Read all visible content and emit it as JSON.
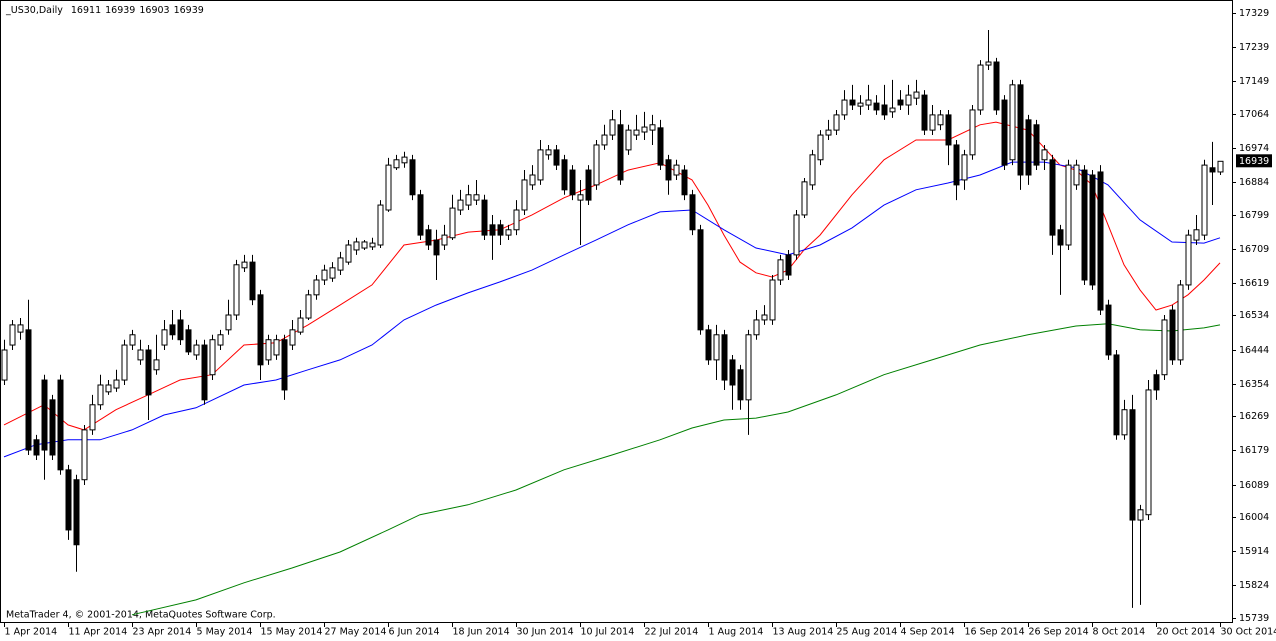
{
  "chart_data": {
    "type": "candlestick",
    "title": "_US30,Daily",
    "footer": "MetaTrader 4, © 2001-2014, MetaQuotes Software Corp.",
    "up_color": "#ffffff",
    "down_color": "#000000",
    "ylim": [
      15728,
      17363
    ],
    "yticks": [
      17329,
      17239,
      17149,
      17064,
      16974,
      16884,
      16799,
      16709,
      16619,
      16534,
      16444,
      16354,
      16269,
      16179,
      16089,
      16004,
      15914,
      15824,
      15739
    ],
    "categories": [
      "1 Apr 2014",
      null,
      null,
      null,
      null,
      null,
      null,
      null,
      "11 Apr 2014",
      null,
      null,
      null,
      null,
      null,
      null,
      null,
      "23 Apr 2014",
      null,
      null,
      null,
      null,
      null,
      null,
      null,
      "5 May 2014",
      null,
      null,
      null,
      null,
      null,
      null,
      null,
      "15 May 2014",
      null,
      null,
      null,
      null,
      null,
      null,
      null,
      "27 May 2014",
      null,
      null,
      null,
      null,
      null,
      null,
      null,
      "6 Jun 2014",
      null,
      null,
      null,
      null,
      null,
      null,
      null,
      "18 Jun 2014",
      null,
      null,
      null,
      null,
      null,
      null,
      null,
      "30 Jun 2014",
      null,
      null,
      null,
      null,
      null,
      null,
      null,
      "10 Jul 2014",
      null,
      null,
      null,
      null,
      null,
      null,
      null,
      "22 Jul 2014",
      null,
      null,
      null,
      null,
      null,
      null,
      null,
      "1 Aug 2014",
      null,
      null,
      null,
      null,
      null,
      null,
      null,
      "13 Aug 2014",
      null,
      null,
      null,
      null,
      null,
      null,
      null,
      "25 Aug 2014",
      null,
      null,
      null,
      null,
      null,
      null,
      null,
      "4 Sep 2014",
      null,
      null,
      null,
      null,
      null,
      null,
      null,
      "16 Sep 2014",
      null,
      null,
      null,
      null,
      null,
      null,
      null,
      "26 Sep 2014",
      null,
      null,
      null,
      null,
      null,
      null,
      null,
      "8 Oct 2014",
      null,
      null,
      null,
      null,
      null,
      null,
      null,
      "20 Oct 2014",
      null,
      null,
      null,
      null,
      null,
      null,
      null,
      "30 Oct 2014"
    ],
    "ohlc": [
      [
        16364,
        16470,
        16351,
        16443
      ],
      [
        16456,
        16522,
        16443,
        16509
      ],
      [
        16490,
        16527,
        16470,
        16509
      ],
      [
        16496,
        16575,
        16167,
        16180
      ],
      [
        16207,
        16220,
        16154,
        16167
      ],
      [
        16364,
        16378,
        16102,
        16180
      ],
      [
        16312,
        16325,
        16154,
        16167
      ],
      [
        16364,
        16378,
        16115,
        16128
      ],
      [
        16128,
        16141,
        15944,
        15970
      ],
      [
        16102,
        16115,
        15860,
        15931
      ],
      [
        16102,
        16246,
        16088,
        16233
      ],
      [
        16233,
        16325,
        16220,
        16299
      ],
      [
        16299,
        16378,
        16286,
        16351
      ],
      [
        16333,
        16364,
        16325,
        16351
      ],
      [
        16343,
        16391,
        16333,
        16364
      ],
      [
        16364,
        16470,
        16351,
        16456
      ],
      [
        16456,
        16496,
        16443,
        16483
      ],
      [
        16417,
        16470,
        16404,
        16443
      ],
      [
        16443,
        16456,
        16259,
        16325
      ],
      [
        16391,
        16483,
        16378,
        16417
      ],
      [
        16456,
        16522,
        16443,
        16496
      ],
      [
        16509,
        16548,
        16470,
        16483
      ],
      [
        16522,
        16548,
        16456,
        16470
      ],
      [
        16496,
        16509,
        16430,
        16438
      ],
      [
        16430,
        16470,
        16417,
        16456
      ],
      [
        16456,
        16470,
        16299,
        16312
      ],
      [
        16378,
        16483,
        16364,
        16470
      ],
      [
        16456,
        16496,
        16443,
        16483
      ],
      [
        16496,
        16575,
        16483,
        16535
      ],
      [
        16535,
        16680,
        16522,
        16667
      ],
      [
        16659,
        16693,
        16648,
        16674
      ],
      [
        16674,
        16693,
        16561,
        16575
      ],
      [
        16588,
        16601,
        16364,
        16404
      ],
      [
        16417,
        16483,
        16404,
        16470
      ],
      [
        16430,
        16483,
        16417,
        16470
      ],
      [
        16470,
        16483,
        16312,
        16338
      ],
      [
        16456,
        16522,
        16443,
        16496
      ],
      [
        16490,
        16548,
        16483,
        16527
      ],
      [
        16527,
        16601,
        16522,
        16588
      ],
      [
        16588,
        16640,
        16575,
        16627
      ],
      [
        16627,
        16667,
        16614,
        16653
      ],
      [
        16632,
        16674,
        16622,
        16659
      ],
      [
        16653,
        16701,
        16640,
        16685
      ],
      [
        16674,
        16732,
        16667,
        16719
      ],
      [
        16706,
        16738,
        16693,
        16727
      ],
      [
        16711,
        16732,
        16706,
        16727
      ],
      [
        16714,
        16738,
        16706,
        16724
      ],
      [
        16719,
        16837,
        16711,
        16824
      ],
      [
        16811,
        16948,
        16806,
        16929
      ],
      [
        16922,
        16956,
        16916,
        16943
      ],
      [
        16935,
        16964,
        16922,
        16950
      ],
      [
        16943,
        16956,
        16837,
        16851
      ],
      [
        16851,
        16864,
        16732,
        16745
      ],
      [
        16759,
        16772,
        16706,
        16719
      ],
      [
        16732,
        16759,
        16627,
        16693
      ],
      [
        16719,
        16772,
        16706,
        16745
      ],
      [
        16738,
        16851,
        16732,
        16816
      ],
      [
        16811,
        16864,
        16798,
        16837
      ],
      [
        16824,
        16877,
        16811,
        16851
      ],
      [
        16837,
        16890,
        16824,
        16851
      ],
      [
        16837,
        16851,
        16732,
        16745
      ],
      [
        16772,
        16798,
        16680,
        16745
      ],
      [
        16772,
        16785,
        16719,
        16745
      ],
      [
        16745,
        16772,
        16732,
        16759
      ],
      [
        16759,
        16837,
        16745,
        16811
      ],
      [
        16811,
        16916,
        16798,
        16890
      ],
      [
        16877,
        16929,
        16864,
        16903
      ],
      [
        16890,
        16995,
        16877,
        16969
      ],
      [
        16956,
        16982,
        16943,
        16969
      ],
      [
        16969,
        16982,
        16916,
        16929
      ],
      [
        16943,
        16956,
        16851,
        16864
      ],
      [
        16916,
        16929,
        16837,
        16851
      ],
      [
        16837,
        16890,
        16719,
        16851
      ],
      [
        16916,
        16929,
        16824,
        16837
      ],
      [
        16877,
        16995,
        16864,
        16982
      ],
      [
        16982,
        17035,
        16969,
        17008
      ],
      [
        17008,
        17074,
        16995,
        17048
      ],
      [
        17035,
        17074,
        16877,
        16890
      ],
      [
        16969,
        17035,
        16956,
        17021
      ],
      [
        17008,
        17061,
        16995,
        17021
      ],
      [
        17016,
        17069,
        16995,
        17029
      ],
      [
        17021,
        17061,
        16982,
        17035
      ],
      [
        17027,
        17048,
        16916,
        16929
      ],
      [
        16943,
        16956,
        16851,
        16890
      ],
      [
        16903,
        16943,
        16890,
        16929
      ],
      [
        16916,
        16929,
        16837,
        16851
      ],
      [
        16851,
        16864,
        16745,
        16759
      ],
      [
        16759,
        16772,
        16483,
        16496
      ],
      [
        16496,
        16509,
        16404,
        16417
      ],
      [
        16417,
        16509,
        16364,
        16483
      ],
      [
        16483,
        16496,
        16338,
        16364
      ],
      [
        16417,
        16430,
        16286,
        16351
      ],
      [
        16391,
        16404,
        16286,
        16312
      ],
      [
        16312,
        16496,
        16220,
        16483
      ],
      [
        16483,
        16548,
        16470,
        16522
      ],
      [
        16522,
        16561,
        16509,
        16535
      ],
      [
        16522,
        16640,
        16509,
        16627
      ],
      [
        16627,
        16693,
        16614,
        16680
      ],
      [
        16693,
        16706,
        16627,
        16640
      ],
      [
        16693,
        16811,
        16680,
        16798
      ],
      [
        16798,
        16895,
        16790,
        16885
      ],
      [
        16877,
        16969,
        16864,
        16956
      ],
      [
        16943,
        17021,
        16929,
        17008
      ],
      [
        17008,
        17048,
        16995,
        17021
      ],
      [
        17021,
        17074,
        17008,
        17061
      ],
      [
        17061,
        17126,
        17048,
        17100
      ],
      [
        17100,
        17140,
        17074,
        17087
      ],
      [
        17084,
        17113,
        17061,
        17092
      ],
      [
        17087,
        17140,
        17074,
        17100
      ],
      [
        17092,
        17113,
        17061,
        17074
      ],
      [
        17087,
        17140,
        17048,
        17061
      ],
      [
        17069,
        17153,
        17053,
        17079
      ],
      [
        17100,
        17126,
        17074,
        17087
      ],
      [
        17087,
        17140,
        17061,
        17113
      ],
      [
        17105,
        17153,
        17087,
        17121
      ],
      [
        17113,
        17126,
        17008,
        17021
      ],
      [
        17021,
        17087,
        17008,
        17061
      ],
      [
        17035,
        17074,
        17021,
        17061
      ],
      [
        17061,
        17074,
        16929,
        16982
      ],
      [
        16982,
        16995,
        16837,
        16877
      ],
      [
        16890,
        16969,
        16864,
        16956
      ],
      [
        16956,
        17087,
        16943,
        17074
      ],
      [
        17074,
        17205,
        17061,
        17192
      ],
      [
        17192,
        17284,
        17179,
        17200
      ],
      [
        17200,
        17211,
        17061,
        17074
      ],
      [
        17100,
        17113,
        16916,
        16929
      ],
      [
        16943,
        17153,
        16929,
        17140
      ],
      [
        17140,
        17153,
        16864,
        16903
      ],
      [
        17048,
        17061,
        16877,
        16903
      ],
      [
        17035,
        17048,
        16916,
        16929
      ],
      [
        16943,
        16982,
        16916,
        16969
      ],
      [
        16943,
        16956,
        16693,
        16745
      ],
      [
        16759,
        16772,
        16588,
        16719
      ],
      [
        16719,
        16943,
        16706,
        16929
      ],
      [
        16877,
        16943,
        16864,
        16929
      ],
      [
        16916,
        16929,
        16614,
        16627
      ],
      [
        16903,
        16916,
        16601,
        16614
      ],
      [
        16911,
        16929,
        16535,
        16548
      ],
      [
        16561,
        16575,
        16417,
        16430
      ],
      [
        16430,
        16443,
        16207,
        16220
      ],
      [
        16220,
        16312,
        16207,
        16286
      ],
      [
        16286,
        16325,
        15765,
        15996
      ],
      [
        15996,
        16036,
        15773,
        16023
      ],
      [
        16010,
        16364,
        15996,
        16338
      ],
      [
        16378,
        16391,
        16312,
        16338
      ],
      [
        16378,
        16535,
        16364,
        16522
      ],
      [
        16548,
        16561,
        16404,
        16417
      ],
      [
        16417,
        16627,
        16404,
        16614
      ],
      [
        16614,
        16759,
        16601,
        16745
      ],
      [
        16732,
        16798,
        16719,
        16759
      ],
      [
        16745,
        16943,
        16732,
        16929
      ],
      [
        16922,
        16990,
        16824,
        16911
      ],
      [
        16911,
        16939,
        16903,
        16939
      ]
    ],
    "lines": [
      {
        "color": "#ff0000",
        "x": [
          0,
          5,
          8,
          10,
          14,
          18,
          22,
          26,
          30,
          34,
          38,
          42,
          46,
          50,
          54,
          58,
          62,
          66,
          70,
          74,
          78,
          82,
          86,
          88,
          90,
          92,
          94,
          96,
          98,
          100,
          102,
          106,
          110,
          114,
          118,
          122,
          124,
          128,
          132,
          134,
          136,
          138,
          140,
          142,
          144,
          146,
          148,
          150,
          152
        ],
        "values": [
          16246,
          16299,
          16246,
          16233,
          16286,
          16325,
          16364,
          16378,
          16456,
          16462,
          16509,
          16561,
          16614,
          16719,
          16732,
          16753,
          16759,
          16798,
          16843,
          16877,
          16916,
          16935,
          16890,
          16824,
          16745,
          16674,
          16646,
          16635,
          16653,
          16706,
          16745,
          16851,
          16943,
          16995,
          16995,
          17035,
          17042,
          17021,
          16929,
          16916,
          16877,
          16772,
          16667,
          16601,
          16548,
          16561,
          16588,
          16627,
          16672
        ]
      },
      {
        "color": "#0000ff",
        "x": [
          0,
          4,
          8,
          12,
          16,
          20,
          24,
          30,
          34,
          38,
          42,
          46,
          50,
          54,
          58,
          62,
          66,
          70,
          74,
          78,
          82,
          86,
          90,
          94,
          98,
          102,
          106,
          110,
          114,
          118,
          122,
          126,
          130,
          134,
          138,
          142,
          146,
          150,
          152
        ],
        "values": [
          16162,
          16194,
          16207,
          16207,
          16233,
          16272,
          16291,
          16351,
          16364,
          16391,
          16417,
          16456,
          16522,
          16561,
          16593,
          16622,
          16653,
          16693,
          16732,
          16772,
          16806,
          16811,
          16759,
          16711,
          16693,
          16719,
          16764,
          16824,
          16864,
          16882,
          16903,
          16937,
          16937,
          16922,
          16877,
          16785,
          16727,
          16724,
          16738
        ]
      },
      {
        "color": "#008000",
        "x": [
          16,
          24,
          30,
          36,
          42,
          48,
          52,
          58,
          64,
          70,
          76,
          82,
          86,
          90,
          94,
          98,
          104,
          110,
          116,
          122,
          128,
          134,
          138,
          142,
          146,
          150,
          152
        ],
        "values": [
          15747,
          15786,
          15831,
          15870,
          15912,
          15970,
          16010,
          16036,
          16075,
          16128,
          16167,
          16207,
          16238,
          16259,
          16264,
          16280,
          16325,
          16378,
          16417,
          16456,
          16483,
          16506,
          16512,
          16496,
          16493,
          16501,
          16509
        ]
      }
    ]
  }
}
